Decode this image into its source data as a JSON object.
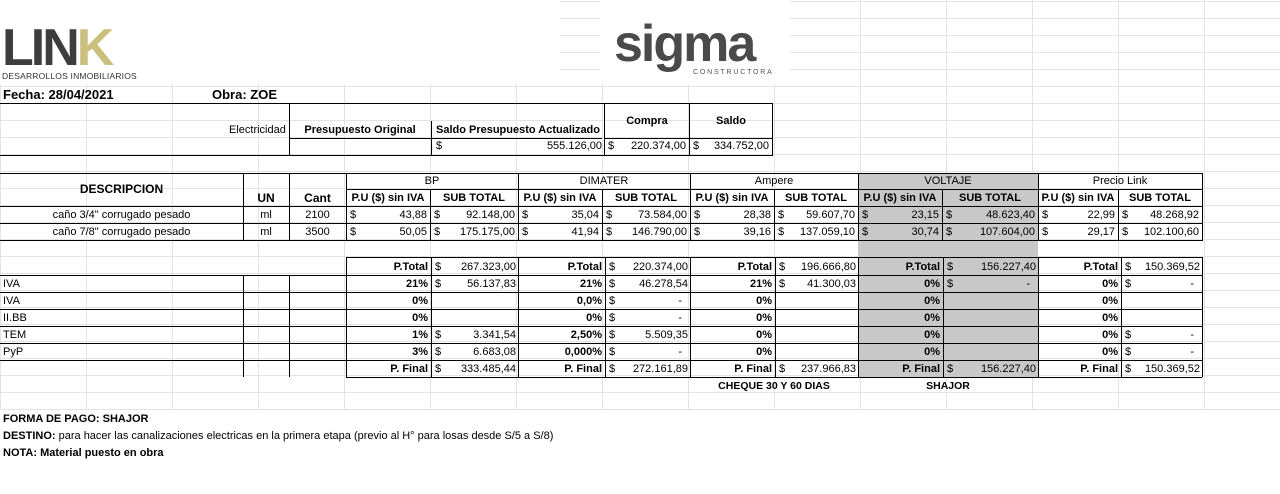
{
  "logos": {
    "link": {
      "word_main": "LIN",
      "word_accent": "K",
      "subtitle": "DESARROLLOS INMOBILIARIOS"
    },
    "sigma": {
      "word": "sigma",
      "subtitle": "CONSTRUCTORA"
    }
  },
  "header": {
    "fecha": "Fecha: 28/04/2021",
    "obra": "Obra:  ZOE"
  },
  "summary": {
    "electricidad_label": "Electricidad",
    "col_presupuesto_original": "Presupuesto Original",
    "col_saldo_actualizado": "Saldo Presupuesto Actualizado",
    "col_compra": "Compra",
    "col_saldo": "Saldo",
    "currency": "$",
    "saldo_actualizado_value": "555.126,00",
    "compra_value": "220.374,00",
    "saldo_value": "334.752,00"
  },
  "table": {
    "descripcion": "DESCRIPCION",
    "un": "UN",
    "cant": "Cant",
    "pu_label": "P.U ($) sin IVA",
    "subtotal_label": "SUB TOTAL",
    "currency": "$",
    "suppliers": [
      "BP",
      "DIMATER",
      "Ampere",
      "VOLTAJE",
      "Precio Link"
    ],
    "items": [
      {
        "desc": "caño 3/4\" corrugado pesado",
        "un": "ml",
        "cant": "2100",
        "prices": [
          [
            "43,88",
            "92.148,00"
          ],
          [
            "35,04",
            "73.584,00"
          ],
          [
            "28,38",
            "59.607,70"
          ],
          [
            "23,15",
            "48.623,40"
          ],
          [
            "22,99",
            "48.268,92"
          ]
        ]
      },
      {
        "desc": "caño 7/8\" corrugado pesado",
        "un": "ml",
        "cant": "3500",
        "prices": [
          [
            "50,05",
            "175.175,00"
          ],
          [
            "41,94",
            "146.790,00"
          ],
          [
            "39,16",
            "137.059,10"
          ],
          [
            "30,74",
            "107.604,00"
          ],
          [
            "29,17",
            "102.100,60"
          ]
        ]
      }
    ]
  },
  "totals": {
    "ptotal_label": "P.Total",
    "pfinal_label": "P. Final",
    "ptotal": [
      "267.323,00",
      "220.374,00",
      "196.666,80",
      "156.227,40",
      "150.369,52"
    ],
    "pfinal": [
      "333.485,44",
      "272.161,89",
      "237.966,83",
      "156.227,40",
      "150.369,52"
    ],
    "dash": "-",
    "tax_rows": [
      {
        "label": "IVA",
        "cells": [
          [
            "21%",
            "56.137,83"
          ],
          [
            "21%",
            "46.278,54"
          ],
          [
            "21%",
            "41.300,03"
          ],
          [
            "0%",
            "-"
          ],
          [
            "0%",
            "-"
          ]
        ]
      },
      {
        "label": "IVA",
        "cells": [
          [
            "0%",
            ""
          ],
          [
            "0,0%",
            "-"
          ],
          [
            "0%",
            ""
          ],
          [
            "0%",
            ""
          ],
          [
            "0%",
            ""
          ]
        ]
      },
      {
        "label": "II.BB",
        "cells": [
          [
            "0%",
            ""
          ],
          [
            "0%",
            "-"
          ],
          [
            "0%",
            ""
          ],
          [
            "0%",
            ""
          ],
          [
            "0%",
            ""
          ]
        ]
      },
      {
        "label": "TEM",
        "cells": [
          [
            "1%",
            "3.341,54"
          ],
          [
            "2,50%",
            "5.509,35"
          ],
          [
            "0%",
            ""
          ],
          [
            "0%",
            ""
          ],
          [
            "0%",
            "-"
          ]
        ]
      },
      {
        "label": "PyP",
        "cells": [
          [
            "3%",
            "6.683,08"
          ],
          [
            "0,000%",
            "-"
          ],
          [
            "0%",
            ""
          ],
          [
            "0%",
            ""
          ],
          [
            "0%",
            "-"
          ]
        ]
      }
    ],
    "notes_under": [
      "CHEQUE 30 Y 60 DIAS",
      "SHAJOR"
    ]
  },
  "footer": {
    "forma_pago": "FORMA DE PAGO: SHAJOR",
    "destino_label": "DESTINO:",
    "destino_text": " para hacer las canalizaciones electricas en la primera etapa (previo al H° para losas desde S/5  a S/8)",
    "nota": "NOTA: Material puesto en obra"
  },
  "colors": {
    "highlight_gray": "#c8c8c8",
    "link_gold": "#cbbf7e",
    "logo_dark": "#3d3d3d"
  }
}
